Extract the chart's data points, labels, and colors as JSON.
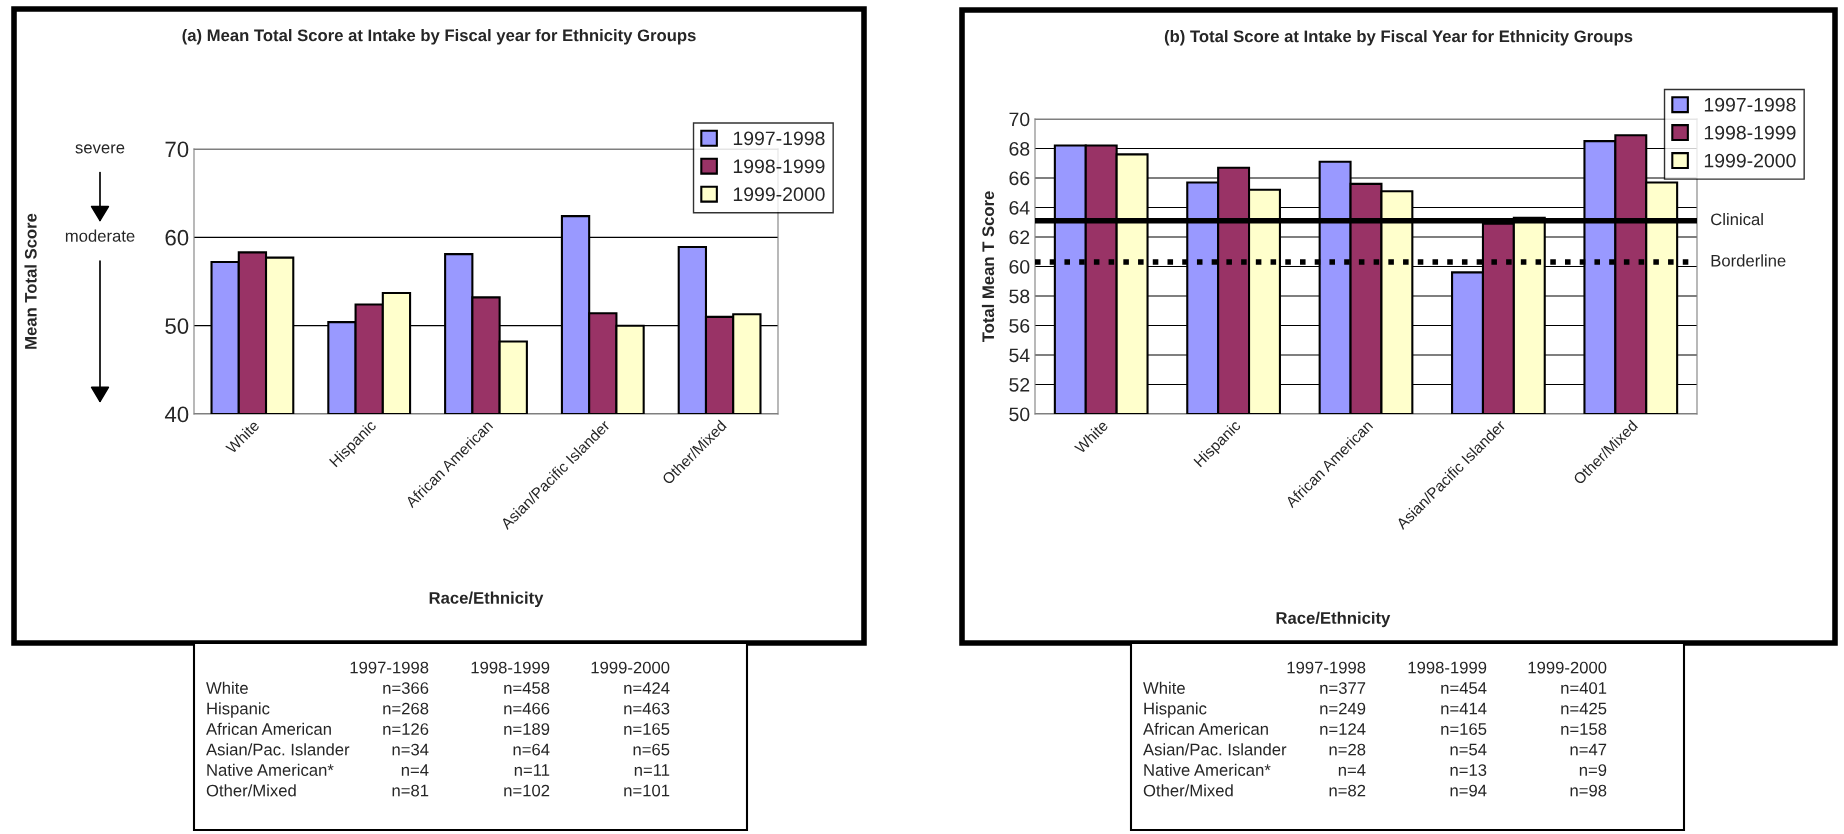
{
  "chart_data": [
    {
      "type": "bar",
      "title": "(a) Mean Total Score at Intake by Fiscal year for Ethnicity Groups",
      "xlabel": "Race/Ethnicity",
      "ylabel": "Mean Total Score",
      "categories": [
        "White",
        "Hispanic",
        "African American",
        "Asian/Pacific Islander",
        "Other/Mixed"
      ],
      "series": [
        {
          "name": "1997-1998",
          "color": "#9999ff",
          "values": [
            57.2,
            50.4,
            58.1,
            62.4,
            58.9
          ]
        },
        {
          "name": "1998-1999",
          "color": "#993366",
          "values": [
            58.3,
            52.4,
            53.2,
            51.4,
            51.0
          ]
        },
        {
          "name": "1999-2000",
          "color": "#ffffcc",
          "values": [
            57.7,
            53.7,
            48.2,
            50.0,
            51.3
          ]
        }
      ],
      "ylim": [
        40,
        70
      ],
      "yticks": [
        40,
        50,
        60,
        70
      ],
      "grid": "y",
      "legend": "top right",
      "annotations": [
        "severe",
        "moderate",
        "1997-1998",
        "1998-1999",
        "1999-2000",
        "White",
        "n=366",
        "n=458",
        "n=424",
        "Hispanic",
        "n=268",
        "n=466",
        "n=463",
        "African American",
        "n=126",
        "n=189",
        "n=165",
        "Asian/Pac. Islander",
        "n=34",
        "n=64",
        "n=65",
        "Native American*",
        "n=4",
        "n=11",
        "n=11",
        "Other/Mixed",
        "n=81",
        "n=102",
        "n=101"
      ]
    },
    {
      "type": "bar",
      "title": "(b) Total Score at Intake by Fiscal Year for Ethnicity Groups",
      "xlabel": "Race/Ethnicity",
      "ylabel": "Total Mean T Score",
      "categories": [
        "White",
        "Hispanic",
        "African American",
        "Asian/Pacific Islander",
        "Other/Mixed"
      ],
      "series": [
        {
          "name": "1997-1998",
          "color": "#9999ff",
          "values": [
            68.2,
            65.7,
            67.1,
            59.6,
            68.5
          ]
        },
        {
          "name": "1998-1999",
          "color": "#993366",
          "values": [
            68.2,
            66.7,
            65.6,
            62.9,
            68.9
          ]
        },
        {
          "name": "1999-2000",
          "color": "#ffffcc",
          "values": [
            67.6,
            65.2,
            65.1,
            63.3,
            65.7
          ]
        }
      ],
      "ylim": [
        50,
        70
      ],
      "yticks": [
        50,
        52,
        54,
        56,
        58,
        60,
        62,
        64,
        66,
        68,
        70
      ],
      "grid": "y",
      "legend": "top right",
      "ref_lines": [
        {
          "axis": "y",
          "value": 63.1,
          "label": "Clinical",
          "color": "#000000",
          "line_style": "solid"
        },
        {
          "axis": "y",
          "value": 60.3,
          "label": "Borderline",
          "color": "#000000",
          "line_style": "dotted"
        }
      ],
      "annotations": [
        "1997-1998",
        "1998-1999",
        "1999-2000",
        "White",
        "n=377",
        "n=454",
        "n=401",
        "Hispanic",
        "n=249",
        "n=414",
        "n=425",
        "African American",
        "n=124",
        "n=165",
        "n=158",
        "Asian/Pac. Islander",
        "n=28",
        "n=54",
        "n=47",
        "Native American*",
        "n=4",
        "n=13",
        "n=9",
        "Other/Mixed",
        "n=82",
        "n=94",
        "n=98"
      ]
    }
  ]
}
